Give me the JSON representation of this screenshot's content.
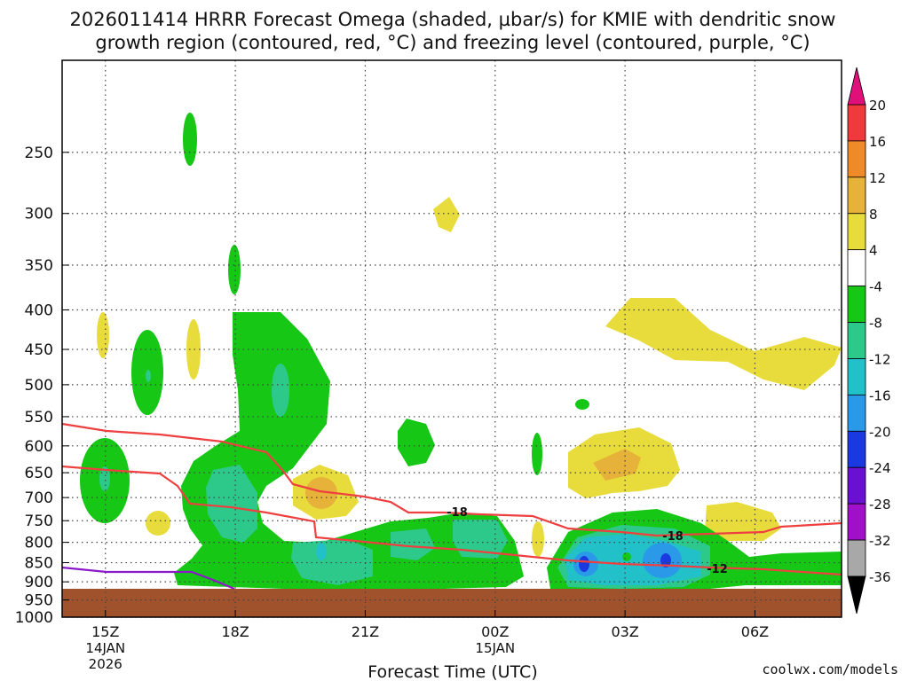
{
  "chart_data": {
    "type": "heatmap",
    "title_line1": "2026011414 HRRR Forecast Omega (shaded, µbar/s) for KMIE with dendritic snow",
    "title_line2": "growth region (contoured, red, °C) and freezing level (contoured, purple, °C)",
    "xlabel": "Forecast Time (UTC)",
    "watermark": "coolwx.com/models",
    "y_axis": {
      "scale": "log-pressure",
      "inverted": true,
      "ticks": [
        250,
        300,
        350,
        400,
        450,
        500,
        550,
        600,
        650,
        700,
        750,
        800,
        850,
        900,
        950,
        1000
      ],
      "ylim": [
        1000,
        190
      ]
    },
    "x_axis": {
      "xlim": [
        "14JAN2026 14Z",
        "15JAN2026 08Z"
      ],
      "ticks": [
        {
          "hour": 15,
          "label": "15Z",
          "sub1": "14JAN",
          "sub2": "2026"
        },
        {
          "hour": 18,
          "label": "18Z",
          "sub1": "",
          "sub2": ""
        },
        {
          "hour": 21,
          "label": "21Z",
          "sub1": "",
          "sub2": ""
        },
        {
          "hour": 24,
          "label": "00Z",
          "sub1": "15JAN",
          "sub2": ""
        },
        {
          "hour": 27,
          "label": "03Z",
          "sub1": "",
          "sub2": ""
        },
        {
          "hour": 30,
          "label": "06Z",
          "sub1": "",
          "sub2": ""
        }
      ]
    },
    "grid": true,
    "colorbar": {
      "labels": [
        "20",
        "16",
        "12",
        "8",
        "4",
        "-4",
        "-8",
        "-12",
        "-16",
        "-20",
        "-24",
        "-28",
        "-32",
        "-36"
      ],
      "bands": [
        {
          "from": 16,
          "to": 20,
          "color": "#ee3a3a"
        },
        {
          "from": 12,
          "to": 16,
          "color": "#ee8a28"
        },
        {
          "from": 8,
          "to": 12,
          "color": "#e6b23a"
        },
        {
          "from": 4,
          "to": 8,
          "color": "#e8dc3c"
        },
        {
          "from": -4,
          "to": 4,
          "color": "#ffffff"
        },
        {
          "from": -8,
          "to": -4,
          "color": "#16c716"
        },
        {
          "from": -12,
          "to": -8,
          "color": "#2cc98a"
        },
        {
          "from": -16,
          "to": -12,
          "color": "#22c0c8"
        },
        {
          "from": -20,
          "to": -16,
          "color": "#2a9ae8"
        },
        {
          "from": -24,
          "to": -20,
          "color": "#1a3ae0"
        },
        {
          "from": -28,
          "to": -24,
          "color": "#6a10d0"
        },
        {
          "from": -32,
          "to": -28,
          "color": "#a010c8"
        },
        {
          "from": -36,
          "to": -32,
          "color": "#a8a8a8"
        }
      ],
      "top_arrow_color": "#e0107a",
      "bottom_arrow_color": "#000000"
    },
    "contours": {
      "dgz_color": "#ee4040",
      "freezing_color": "#8a1ac8",
      "labels": [
        "-18",
        "-18",
        "-12"
      ]
    },
    "ground_color": "#a0522d"
  }
}
